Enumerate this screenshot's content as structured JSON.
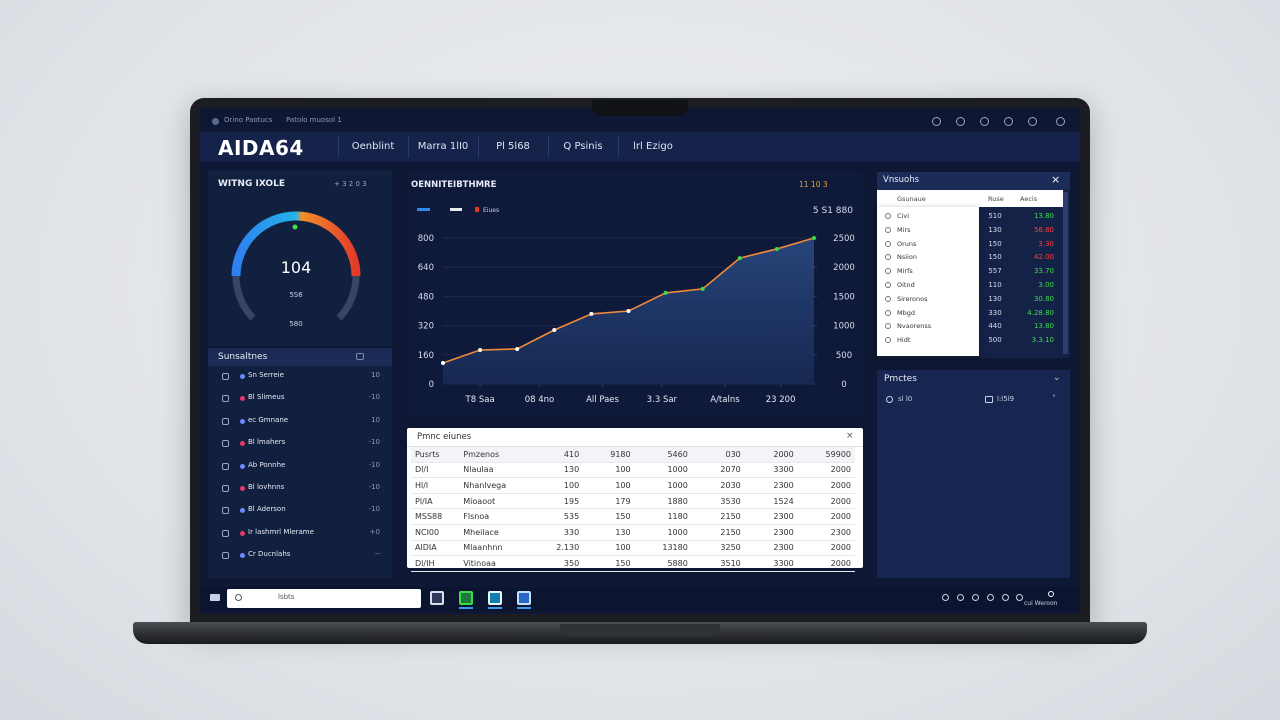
{
  "topbar": {
    "title": "Orino Paotucs",
    "subtitle": "Patolo muosol 1"
  },
  "header": {
    "logo": "AIDA64",
    "tabs": [
      "Oenblint",
      "Marra 1lI0",
      "Pl 5l68",
      "Q Psinis",
      "lrl Ezigo"
    ]
  },
  "gauge_panel": {
    "title": "WITNG IXOLE",
    "controls": "+ 3 2 0 3",
    "value": "104",
    "sub1": "5S6",
    "sub2": "580"
  },
  "sensors": {
    "title": "Sunsaltnes",
    "rows": [
      {
        "label": "Sn Serreie",
        "value": "10"
      },
      {
        "label": "Bl Slimeus",
        "value": "-10"
      },
      {
        "label": "ec Gmnane",
        "value": "10"
      },
      {
        "label": "Bl lmahers",
        "value": "-10"
      },
      {
        "label": "Ab Ponnhe",
        "value": "-10"
      },
      {
        "label": "Bl lovhnns",
        "value": "-10"
      },
      {
        "label": "Bl Aderson",
        "value": "-10"
      },
      {
        "label": "Ir lashmrl Mlerame",
        "value": "+0"
      },
      {
        "label": "Cr Ducnlahs",
        "value": "--"
      }
    ]
  },
  "chart_data": {
    "type": "line",
    "title": "OENNITEIBTHMRE",
    "controls": "11 10 3",
    "legend": "Eiues",
    "y2_title": "5 S1 880",
    "x": [
      0,
      1,
      2,
      3,
      4,
      5,
      6,
      7,
      8,
      9,
      10
    ],
    "series": [
      {
        "color": "#f08a3a",
        "values": [
          115,
          186,
          192,
          296,
          384,
          400,
          499,
          521,
          690,
          740,
          800
        ]
      }
    ],
    "xlim": [
      0,
      10
    ],
    "xticks": [
      {
        "value": 1,
        "label": "T8 Saa"
      },
      {
        "value": 2.6,
        "label": "08 4no"
      },
      {
        "value": 4.3,
        "label": "All Paes"
      },
      {
        "value": 5.9,
        "label": "3.3 Sar"
      },
      {
        "value": 7.6,
        "label": "A/talns"
      },
      {
        "value": 9.1,
        "label": "23 200"
      }
    ],
    "ylim": [
      0,
      800
    ],
    "yticks": [
      0,
      160,
      320,
      480,
      640,
      800
    ],
    "y2lim": [
      0,
      2500
    ],
    "y2ticks": [
      0,
      500,
      1000,
      1500,
      2000,
      2500
    ],
    "grid": true
  },
  "table": {
    "title": "Pmnc eiunes",
    "header": [
      "Pusrts",
      "Pmzenos",
      "410",
      "9180",
      "5460",
      "030",
      "2000",
      "59900"
    ],
    "rows": [
      [
        "Dl/I",
        "Nlaulaa",
        "130",
        "100",
        "1000",
        "2070",
        "3300",
        "2000"
      ],
      [
        "Hl/l",
        "Nhanlvega",
        "100",
        "100",
        "1000",
        "2030",
        "2300",
        "2000"
      ],
      [
        "Pl/IA",
        "Mioaoot",
        "195",
        "179",
        "1880",
        "3530",
        "1524",
        "2000"
      ],
      [
        "MSS88",
        "Flsnoa",
        "535",
        "150",
        "1180",
        "2150",
        "2300",
        "2000"
      ],
      [
        "NCI00",
        "Mheilace",
        "330",
        "130",
        "1000",
        "2150",
        "2300",
        "2300"
      ],
      [
        "AlDIA",
        "Mlaanhnn",
        "2.130",
        "100",
        "13180",
        "3250",
        "2300",
        "2000"
      ],
      [
        "Dl/IH",
        "Vitinoaa",
        "350",
        "150",
        "5880",
        "3510",
        "3300",
        "2000"
      ]
    ]
  },
  "watchlist": {
    "title": "Vnsuohs",
    "headers": [
      "Gsunaue",
      "Ruse",
      "Aecis"
    ],
    "rows": [
      {
        "name": "Civi",
        "value": "510",
        "change": "13.80",
        "color": "#3ddc4a"
      },
      {
        "name": "Mirs",
        "value": "130",
        "change": "56.80",
        "color": "#ff3b3b"
      },
      {
        "name": "Oruns",
        "value": "150",
        "change": "3.30",
        "color": "#ff3b3b"
      },
      {
        "name": "Nsiion",
        "value": "150",
        "change": "42.00",
        "color": "#ff3b3b"
      },
      {
        "name": "Mirfs",
        "value": "557",
        "change": "33.70",
        "color": "#3ddc4a"
      },
      {
        "name": "Oitnd",
        "value": "110",
        "change": "3.00",
        "color": "#3ddc4a"
      },
      {
        "name": "Sireronos",
        "value": "130",
        "change": "30.80",
        "color": "#3ddc4a"
      },
      {
        "name": "Mbgd",
        "value": "330",
        "change": "4.28.80",
        "color": "#3ddc4a"
      },
      {
        "name": "Nvaorenss",
        "value": "440",
        "change": "13.80",
        "color": "#3ddc4a"
      },
      {
        "name": "Hidt",
        "value": "500",
        "change": "3.3.10",
        "color": "#3ddc4a"
      }
    ]
  },
  "panel2": {
    "title": "Pmctes",
    "item1": "sl l0",
    "item2": "l:l5l9"
  },
  "taskbar": {
    "search": "lsbts",
    "clock": "cui Weroon"
  }
}
